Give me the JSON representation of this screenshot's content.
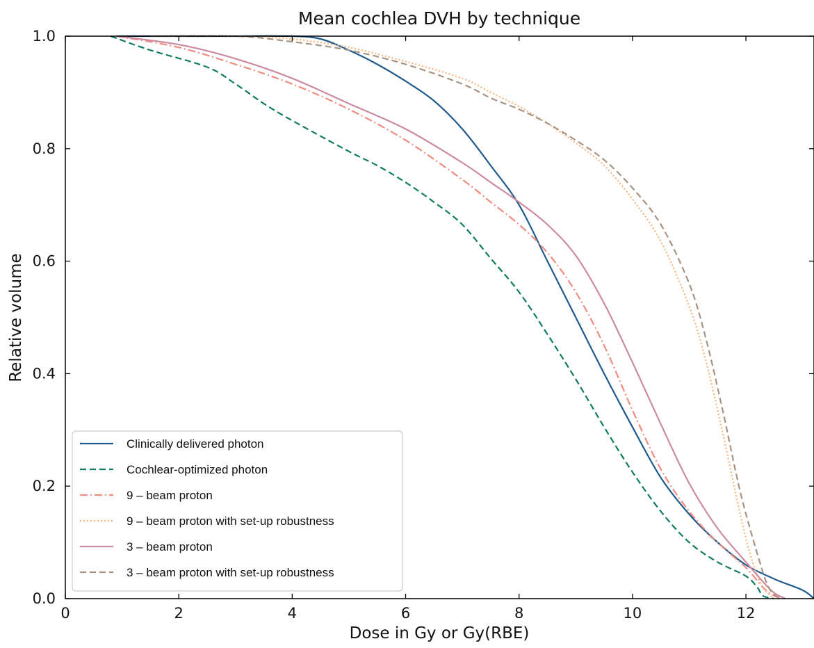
{
  "chart_data": {
    "type": "line",
    "title": "Mean cochlea DVH by technique",
    "xlabel": "Dose in Gy or Gy(RBE)",
    "ylabel": "Relative volume",
    "xlim": [
      0,
      13.2
    ],
    "ylim": [
      0,
      1.0
    ],
    "xticks": [
      0,
      2,
      4,
      6,
      8,
      10,
      12
    ],
    "xtick_labels": [
      "0",
      "2",
      "4",
      "6",
      "8",
      "10",
      "12"
    ],
    "yticks": [
      0.0,
      0.2,
      0.4,
      0.6,
      0.8,
      1.0
    ],
    "ytick_labels": [
      "0.0",
      "0.2",
      "0.4",
      "0.6",
      "0.8",
      "1.0"
    ],
    "grid": false,
    "legend_position": "lower-left",
    "series": [
      {
        "name": "Clinically delivered photon",
        "color": "#1f5a8c",
        "dash": "solid",
        "x": [
          0.9,
          2,
          3,
          4,
          4.5,
          5,
          5.5,
          6,
          6.5,
          7,
          7.5,
          8,
          8.5,
          9,
          9.5,
          10,
          10.5,
          11,
          11.5,
          12,
          12.5,
          13,
          13.2
        ],
        "y": [
          1.0,
          1.0,
          1.0,
          1.0,
          0.995,
          0.975,
          0.95,
          0.92,
          0.885,
          0.835,
          0.77,
          0.7,
          0.6,
          0.5,
          0.4,
          0.305,
          0.215,
          0.15,
          0.1,
          0.06,
          0.035,
          0.015,
          0.0
        ]
      },
      {
        "name": "Cochlear-optimized photon",
        "color": "#0e7a62",
        "dash": "dashed",
        "x": [
          0.8,
          1.5,
          2.5,
          3,
          3.5,
          4,
          5,
          5.5,
          6,
          6.5,
          7,
          7.5,
          8,
          8.5,
          9,
          9.5,
          10,
          10.5,
          11,
          11.5,
          12,
          12.2,
          12.3,
          12.5
        ],
        "y": [
          1.0,
          0.975,
          0.945,
          0.915,
          0.88,
          0.85,
          0.795,
          0.77,
          0.74,
          0.705,
          0.665,
          0.605,
          0.545,
          0.47,
          0.39,
          0.305,
          0.225,
          0.155,
          0.1,
          0.065,
          0.04,
          0.02,
          0.005,
          0.0
        ]
      },
      {
        "name": "9 – beam proton",
        "color": "#f08a7e",
        "dash": "dashdot",
        "x": [
          0.9,
          2,
          3,
          4,
          5,
          6,
          7,
          7.5,
          8,
          8.5,
          9,
          9.5,
          10,
          10.5,
          11,
          11.5,
          12,
          12.3,
          12.5,
          12.7
        ],
        "y": [
          1.0,
          0.98,
          0.95,
          0.915,
          0.87,
          0.815,
          0.745,
          0.705,
          0.665,
          0.615,
          0.545,
          0.45,
          0.335,
          0.23,
          0.155,
          0.1,
          0.055,
          0.02,
          0.005,
          0.0
        ]
      },
      {
        "name": "9 – beam proton with set-up robustness",
        "color": "#f7b27a",
        "dash": "dotted",
        "x": [
          1.5,
          3,
          4,
          5,
          6,
          7,
          7.5,
          8,
          8.5,
          9,
          9.5,
          10,
          10.5,
          11,
          11.3,
          11.6,
          11.9,
          12.1,
          12.3,
          12.5
        ],
        "y": [
          1.0,
          1.0,
          0.995,
          0.98,
          0.955,
          0.925,
          0.9,
          0.875,
          0.845,
          0.81,
          0.77,
          0.71,
          0.635,
          0.52,
          0.42,
          0.29,
          0.15,
          0.07,
          0.02,
          0.0
        ]
      },
      {
        "name": "3 – beam proton",
        "color": "#cc8aa0",
        "dash": "solid",
        "x": [
          0.9,
          2,
          3,
          4,
          5,
          6,
          7,
          7.5,
          8,
          8.5,
          9,
          9.5,
          10,
          10.5,
          11,
          11.5,
          12,
          12.3,
          12.5,
          12.7
        ],
        "y": [
          1.0,
          0.985,
          0.96,
          0.925,
          0.88,
          0.835,
          0.775,
          0.74,
          0.705,
          0.665,
          0.61,
          0.525,
          0.42,
          0.31,
          0.205,
          0.125,
          0.065,
          0.03,
          0.01,
          0.0
        ]
      },
      {
        "name": "3 – beam proton with set-up robustness",
        "color": "#a89282",
        "dash": "dashed",
        "x": [
          1.5,
          3,
          4,
          5,
          6,
          7,
          7.5,
          8,
          8.5,
          9,
          9.5,
          10,
          10.5,
          11,
          11.3,
          11.6,
          11.9,
          12.2,
          12.4,
          12.6
        ],
        "y": [
          1.0,
          1.0,
          0.99,
          0.975,
          0.95,
          0.915,
          0.89,
          0.87,
          0.845,
          0.815,
          0.78,
          0.73,
          0.665,
          0.56,
          0.46,
          0.33,
          0.19,
          0.08,
          0.02,
          0.0
        ]
      }
    ]
  }
}
